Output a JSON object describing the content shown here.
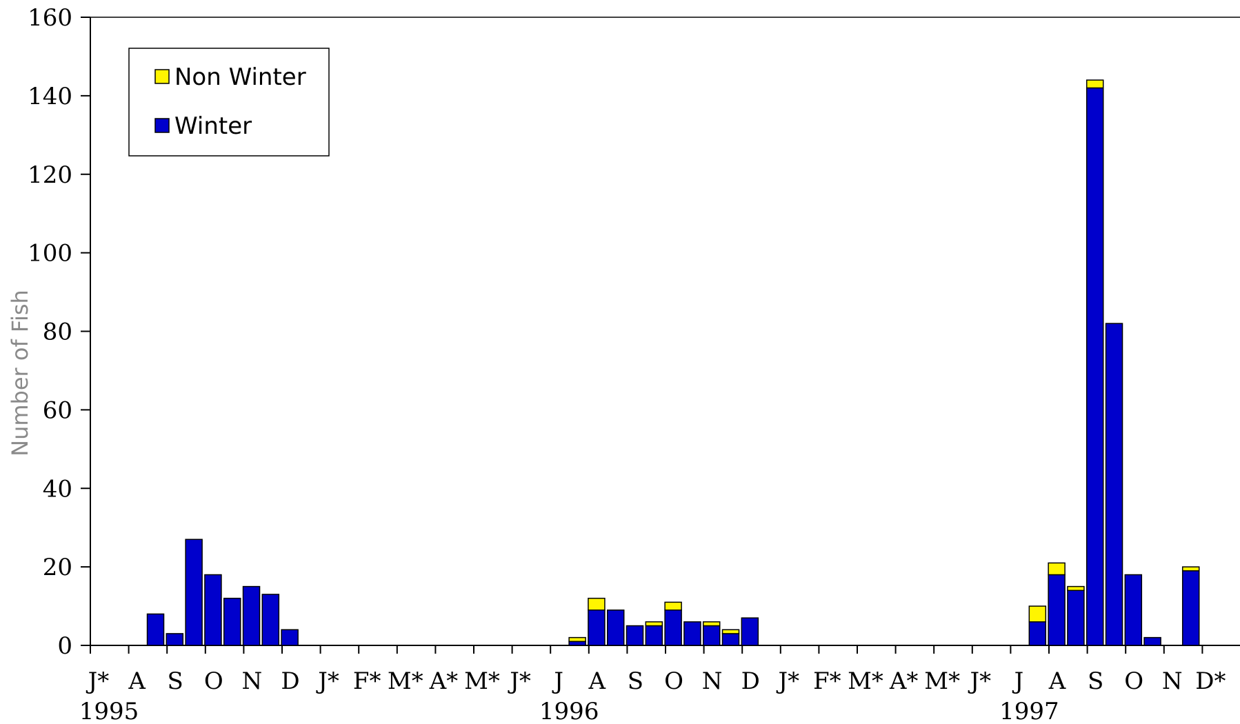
{
  "chart_data": {
    "type": "bar",
    "stacked": true,
    "ylabel": "Number of Fish",
    "ylim": [
      0,
      160
    ],
    "yticks": [
      0,
      20,
      40,
      60,
      80,
      100,
      120,
      140,
      160
    ],
    "grid": false,
    "legend_position": "top-left",
    "month_labels": [
      "J*",
      "A",
      "S",
      "O",
      "N",
      "D",
      "J*",
      "F*",
      "M*",
      "A*",
      "M*",
      "J*",
      "J",
      "A",
      "S",
      "O",
      "N",
      "D",
      "J*",
      "F*",
      "M*",
      "A*",
      "M*",
      "J*",
      "J",
      "A",
      "S",
      "O",
      "N",
      "D*"
    ],
    "year_labels": [
      {
        "label": "1995",
        "month_index": 0
      },
      {
        "label": "1996",
        "month_index": 12
      },
      {
        "label": "1997",
        "month_index": 24
      }
    ],
    "series": [
      {
        "name": "Winter",
        "color": "#0000CC",
        "stack_position": "bottom"
      },
      {
        "name": "Non Winter",
        "color": "#FFF500",
        "stack_position": "top"
      }
    ],
    "bars": [
      {
        "month": 1.7,
        "winter": 8,
        "non_winter": 0
      },
      {
        "month": 2.2,
        "winter": 3,
        "non_winter": 0
      },
      {
        "month": 2.7,
        "winter": 27,
        "non_winter": 0
      },
      {
        "month": 3.2,
        "winter": 18,
        "non_winter": 0
      },
      {
        "month": 3.7,
        "winter": 12,
        "non_winter": 0
      },
      {
        "month": 4.2,
        "winter": 15,
        "non_winter": 0
      },
      {
        "month": 4.7,
        "winter": 13,
        "non_winter": 0
      },
      {
        "month": 5.2,
        "winter": 4,
        "non_winter": 0
      },
      {
        "month": 12.7,
        "winter": 1,
        "non_winter": 1
      },
      {
        "month": 13.2,
        "winter": 9,
        "non_winter": 3
      },
      {
        "month": 13.7,
        "winter": 9,
        "non_winter": 0
      },
      {
        "month": 14.2,
        "winter": 5,
        "non_winter": 0
      },
      {
        "month": 14.7,
        "winter": 5,
        "non_winter": 1
      },
      {
        "month": 15.2,
        "winter": 9,
        "non_winter": 2
      },
      {
        "month": 15.7,
        "winter": 6,
        "non_winter": 0
      },
      {
        "month": 16.2,
        "winter": 5,
        "non_winter": 1
      },
      {
        "month": 16.7,
        "winter": 3,
        "non_winter": 1
      },
      {
        "month": 17.2,
        "winter": 7,
        "non_winter": 0
      },
      {
        "month": 24.7,
        "winter": 6,
        "non_winter": 4
      },
      {
        "month": 25.2,
        "winter": 18,
        "non_winter": 3
      },
      {
        "month": 25.7,
        "winter": 14,
        "non_winter": 1
      },
      {
        "month": 26.2,
        "winter": 142,
        "non_winter": 2
      },
      {
        "month": 26.7,
        "winter": 82,
        "non_winter": 0
      },
      {
        "month": 27.2,
        "winter": 18,
        "non_winter": 0
      },
      {
        "month": 27.7,
        "winter": 2,
        "non_winter": 0
      },
      {
        "month": 28.7,
        "winter": 19,
        "non_winter": 1
      }
    ]
  }
}
